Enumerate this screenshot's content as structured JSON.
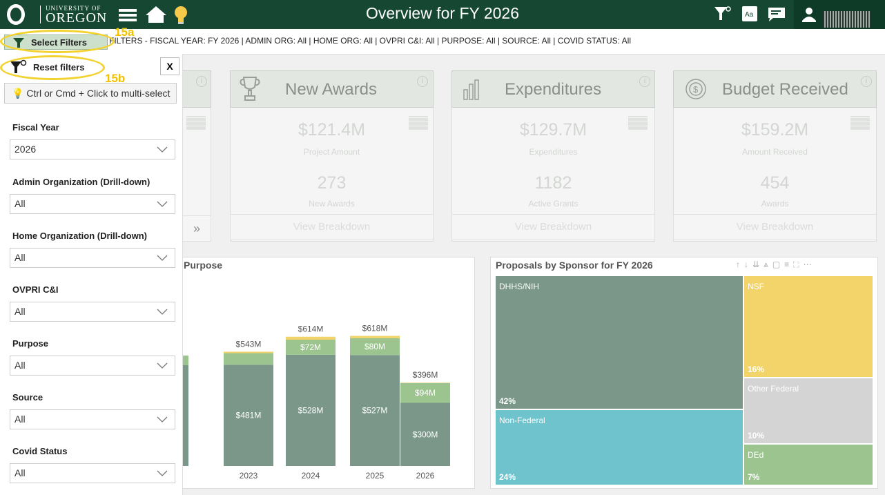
{
  "header": {
    "logo_line1": "UNIVERSITY OF",
    "logo_line2": "OREGON",
    "title": "Overview for FY 2026"
  },
  "filter_bar": {
    "select_filters_label": "Select Filters",
    "summary": "FILTERS - FISCAL YEAR: FY 2026 | ADMIN ORG: All | HOME ORG: All | OVPRI C&I: All | PURPOSE: All | SOURCE: All | COVID STATUS: All",
    "callout_a": "15a",
    "callout_b": "15b"
  },
  "filter_panel": {
    "reset_label": "Reset filters",
    "close_label": "X",
    "hint": "Ctrl or Cmd + Click to multi-select",
    "filters": [
      {
        "label": "Fiscal Year",
        "value": "2026"
      },
      {
        "label": "Admin Organization (Drill-down)",
        "value": "All"
      },
      {
        "label": "Home Organization (Drill-down)",
        "value": "All"
      },
      {
        "label": "OVPRI C&I",
        "value": "All"
      },
      {
        "label": "Purpose",
        "value": "All"
      },
      {
        "label": "Source",
        "value": "All"
      },
      {
        "label": "Covid Status",
        "value": "All"
      }
    ]
  },
  "cards": [
    {
      "title": "New Awards",
      "amount": "$121.4M",
      "amount_label": "Project Amount",
      "count": "273",
      "count_label": "New Awards",
      "button": "View Breakdown"
    },
    {
      "title": "Expenditures",
      "amount": "$129.7M",
      "amount_label": "Expenditures",
      "count": "1182",
      "count_label": "Active Grants",
      "button": "View Breakdown"
    },
    {
      "title": "Budget Received",
      "amount": "$159.2M",
      "amount_label": "Amount Received",
      "count": "454",
      "count_label": "Awards",
      "button": "View Breakdown"
    }
  ],
  "partial_card": {
    "arrow": "»",
    "info": "i"
  },
  "purpose_chart": {
    "title_fragment": "Purpose"
  },
  "chart_data": [
    {
      "type": "bar",
      "title": "Purpose",
      "categories": [
        "2023",
        "2024",
        "2025",
        "2026"
      ],
      "series": [
        {
          "values": [
            481,
            528,
            527,
            300
          ],
          "labels": [
            "$481M",
            "$528M",
            "$527M",
            "$300M"
          ],
          "color": "#7a978a"
        },
        {
          "values": [
            55,
            72,
            80,
            94
          ],
          "labels": [
            "",
            "$72M",
            "$80M",
            "$94M"
          ],
          "color": "#9cc48e"
        },
        {
          "values": [
            7,
            14,
            11,
            2
          ],
          "labels": [
            "",
            "",
            "",
            ""
          ],
          "color": "#f2d46b"
        }
      ],
      "totals": [
        "$543M",
        "$614M",
        "$618M",
        "$396M"
      ],
      "ylim": [
        0,
        700
      ]
    },
    {
      "type": "treemap",
      "title": "Proposals by Sponsor for FY 2026",
      "items": [
        {
          "name": "DHHS/NIH",
          "pct": 42,
          "pct_label": "42%",
          "color": "#7a978a"
        },
        {
          "name": "Non-Federal",
          "pct": 24,
          "pct_label": "24%",
          "color": "#6fc3cc"
        },
        {
          "name": "NSF",
          "pct": 16,
          "pct_label": "16%",
          "color": "#f2d46b"
        },
        {
          "name": "Other Federal",
          "pct": 10,
          "pct_label": "10%",
          "color": "#d4d4d4"
        },
        {
          "name": "DEd",
          "pct": 7,
          "pct_label": "7%",
          "color": "#9cc48e"
        }
      ]
    }
  ]
}
